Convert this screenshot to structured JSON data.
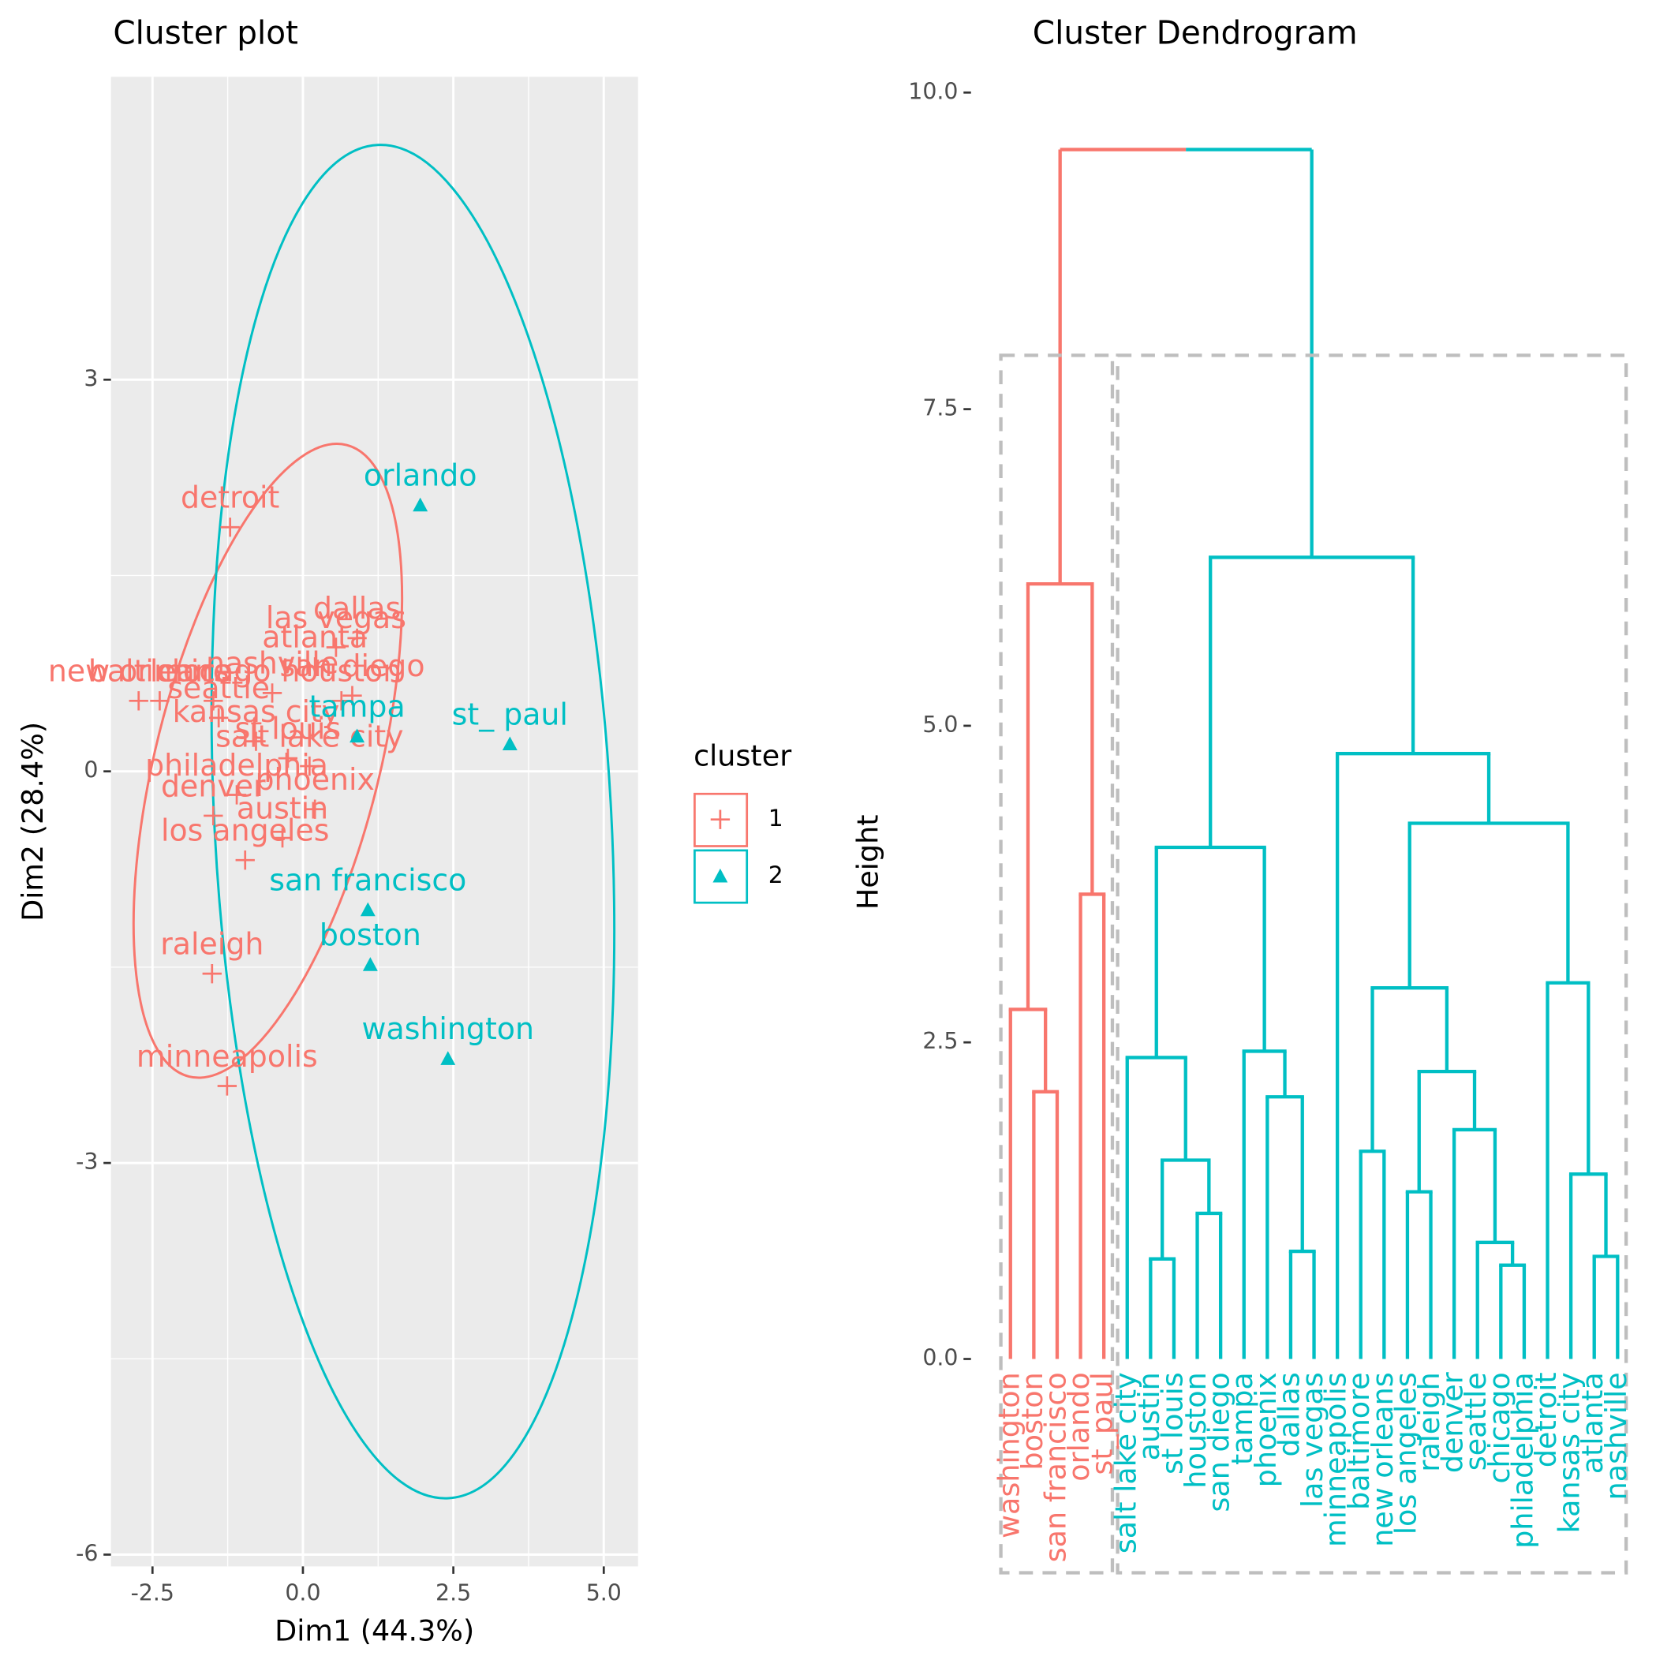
{
  "chart_data": [
    {
      "type": "scatter",
      "title": "Cluster plot",
      "x_label": "Dim1 (44.3%)",
      "y_label": "Dim2 (28.4%)",
      "xlim": [
        -3.19,
        5.57
      ],
      "ylim": [
        -6.09,
        5.32
      ],
      "xticks": [
        -2.5,
        {
          "value": 0,
          "label": "0.0"
        },
        2.5,
        {
          "value": 5,
          "label": "5.0"
        }
      ],
      "yticks": [
        -6,
        -3,
        0,
        3
      ],
      "grid": true,
      "legend_title": "cluster",
      "legend_position": "right",
      "series": [
        {
          "name": "1",
          "color": "#F8766D",
          "marker": "plus",
          "labels": [
            "detroit",
            "dallas",
            "las vegas",
            "atlanta",
            "nashville",
            "san diego",
            "baltimore",
            "new orleans",
            "chicago",
            "houston",
            "seattle",
            "kansas city",
            "st louis",
            "salt lake city",
            "philadelphia",
            "denver",
            "phoenix",
            "austin",
            "los angeles",
            "raleigh",
            "minneapolis"
          ],
          "x": [
            -1.21,
            0.9,
            0.55,
            0.2,
            -0.51,
            0.82,
            -2.38,
            -2.73,
            -1.49,
            0.64,
            -1.4,
            -0.78,
            -0.25,
            0.11,
            -1.1,
            -1.49,
            0.2,
            -0.34,
            -0.96,
            -1.51,
            -1.26
          ],
          "y": [
            1.87,
            1.02,
            0.95,
            0.8,
            0.6,
            0.58,
            0.54,
            0.54,
            0.54,
            0.54,
            0.41,
            0.23,
            0.1,
            0.04,
            -0.18,
            -0.34,
            -0.29,
            -0.51,
            -0.68,
            -1.55,
            -2.41
          ]
        },
        {
          "name": "2",
          "color": "#00BFC4",
          "marker": "triangle",
          "labels": [
            "orlando",
            "st_ paul",
            "tampa",
            "san francisco",
            "boston",
            "washington"
          ],
          "x": [
            1.95,
            3.44,
            0.9,
            1.08,
            1.12,
            2.41
          ],
          "y": [
            2.04,
            0.21,
            0.27,
            -1.06,
            -1.48,
            -2.2
          ]
        }
      ]
    },
    {
      "type": "dendrogram",
      "title": "Cluster Dendrogram",
      "y_label": "Height",
      "ylim": [
        -2,
        10.2
      ],
      "yticks": [
        {
          "value": 0,
          "label": "0.0"
        },
        2.5,
        {
          "value": 5,
          "label": "5.0"
        },
        7.5,
        {
          "value": 10,
          "label": "10.0"
        }
      ],
      "leaves": [
        "washington",
        "boston",
        "san francisco",
        "orlando",
        "st_paul",
        "salt lake city",
        "austin",
        "st louis",
        "houston",
        "san diego",
        "tampa",
        "phoenix",
        "dallas",
        "las vegas",
        "minneapolis",
        "baltimore",
        "new orleans",
        "los angeles",
        "raleigh",
        "denver",
        "seattle",
        "chicago",
        "philadelphia",
        "detroit",
        "kansas city",
        "atlanta",
        "nashville"
      ],
      "leaf_clusters": [
        0,
        0,
        0,
        0,
        0,
        1,
        1,
        1,
        1,
        1,
        1,
        1,
        1,
        1,
        1,
        1,
        1,
        1,
        1,
        1,
        1,
        1,
        1,
        1,
        1,
        1,
        1
      ],
      "cluster_colors": [
        "#F8766D",
        "#00BFC4"
      ],
      "merges": [
        {
          "children": [
            1,
            2
          ],
          "height": 2.11
        },
        {
          "children": [
            0,
            27
          ],
          "height": 2.76
        },
        {
          "children": [
            3,
            4
          ],
          "height": 3.67
        },
        {
          "children": [
            28,
            29
          ],
          "height": 6.12
        },
        {
          "children": [
            6,
            7
          ],
          "height": 0.79
        },
        {
          "children": [
            8,
            9
          ],
          "height": 1.15
        },
        {
          "children": [
            31,
            32
          ],
          "height": 1.57
        },
        {
          "children": [
            5,
            33
          ],
          "height": 2.38
        },
        {
          "children": [
            12,
            13
          ],
          "height": 0.85
        },
        {
          "children": [
            11,
            35
          ],
          "height": 2.07
        },
        {
          "children": [
            10,
            36
          ],
          "height": 2.43
        },
        {
          "children": [
            34,
            37
          ],
          "height": 4.04
        },
        {
          "children": [
            17,
            18
          ],
          "height": 1.32
        },
        {
          "children": [
            21,
            22
          ],
          "height": 0.74
        },
        {
          "children": [
            20,
            40
          ],
          "height": 0.92
        },
        {
          "children": [
            19,
            41
          ],
          "height": 1.81
        },
        {
          "children": [
            39,
            42
          ],
          "height": 2.27
        },
        {
          "children": [
            15,
            16
          ],
          "height": 1.64
        },
        {
          "children": [
            44,
            43
          ],
          "height": 2.93
        },
        {
          "children": [
            25,
            26
          ],
          "height": 0.81
        },
        {
          "children": [
            24,
            46
          ],
          "height": 1.46
        },
        {
          "children": [
            23,
            47
          ],
          "height": 2.97
        },
        {
          "children": [
            45,
            48
          ],
          "height": 4.23
        },
        {
          "children": [
            14,
            49
          ],
          "height": 4.78
        },
        {
          "children": [
            38,
            50
          ],
          "height": 6.33
        },
        {
          "children": [
            30,
            51
          ],
          "height": 9.55
        }
      ]
    }
  ]
}
